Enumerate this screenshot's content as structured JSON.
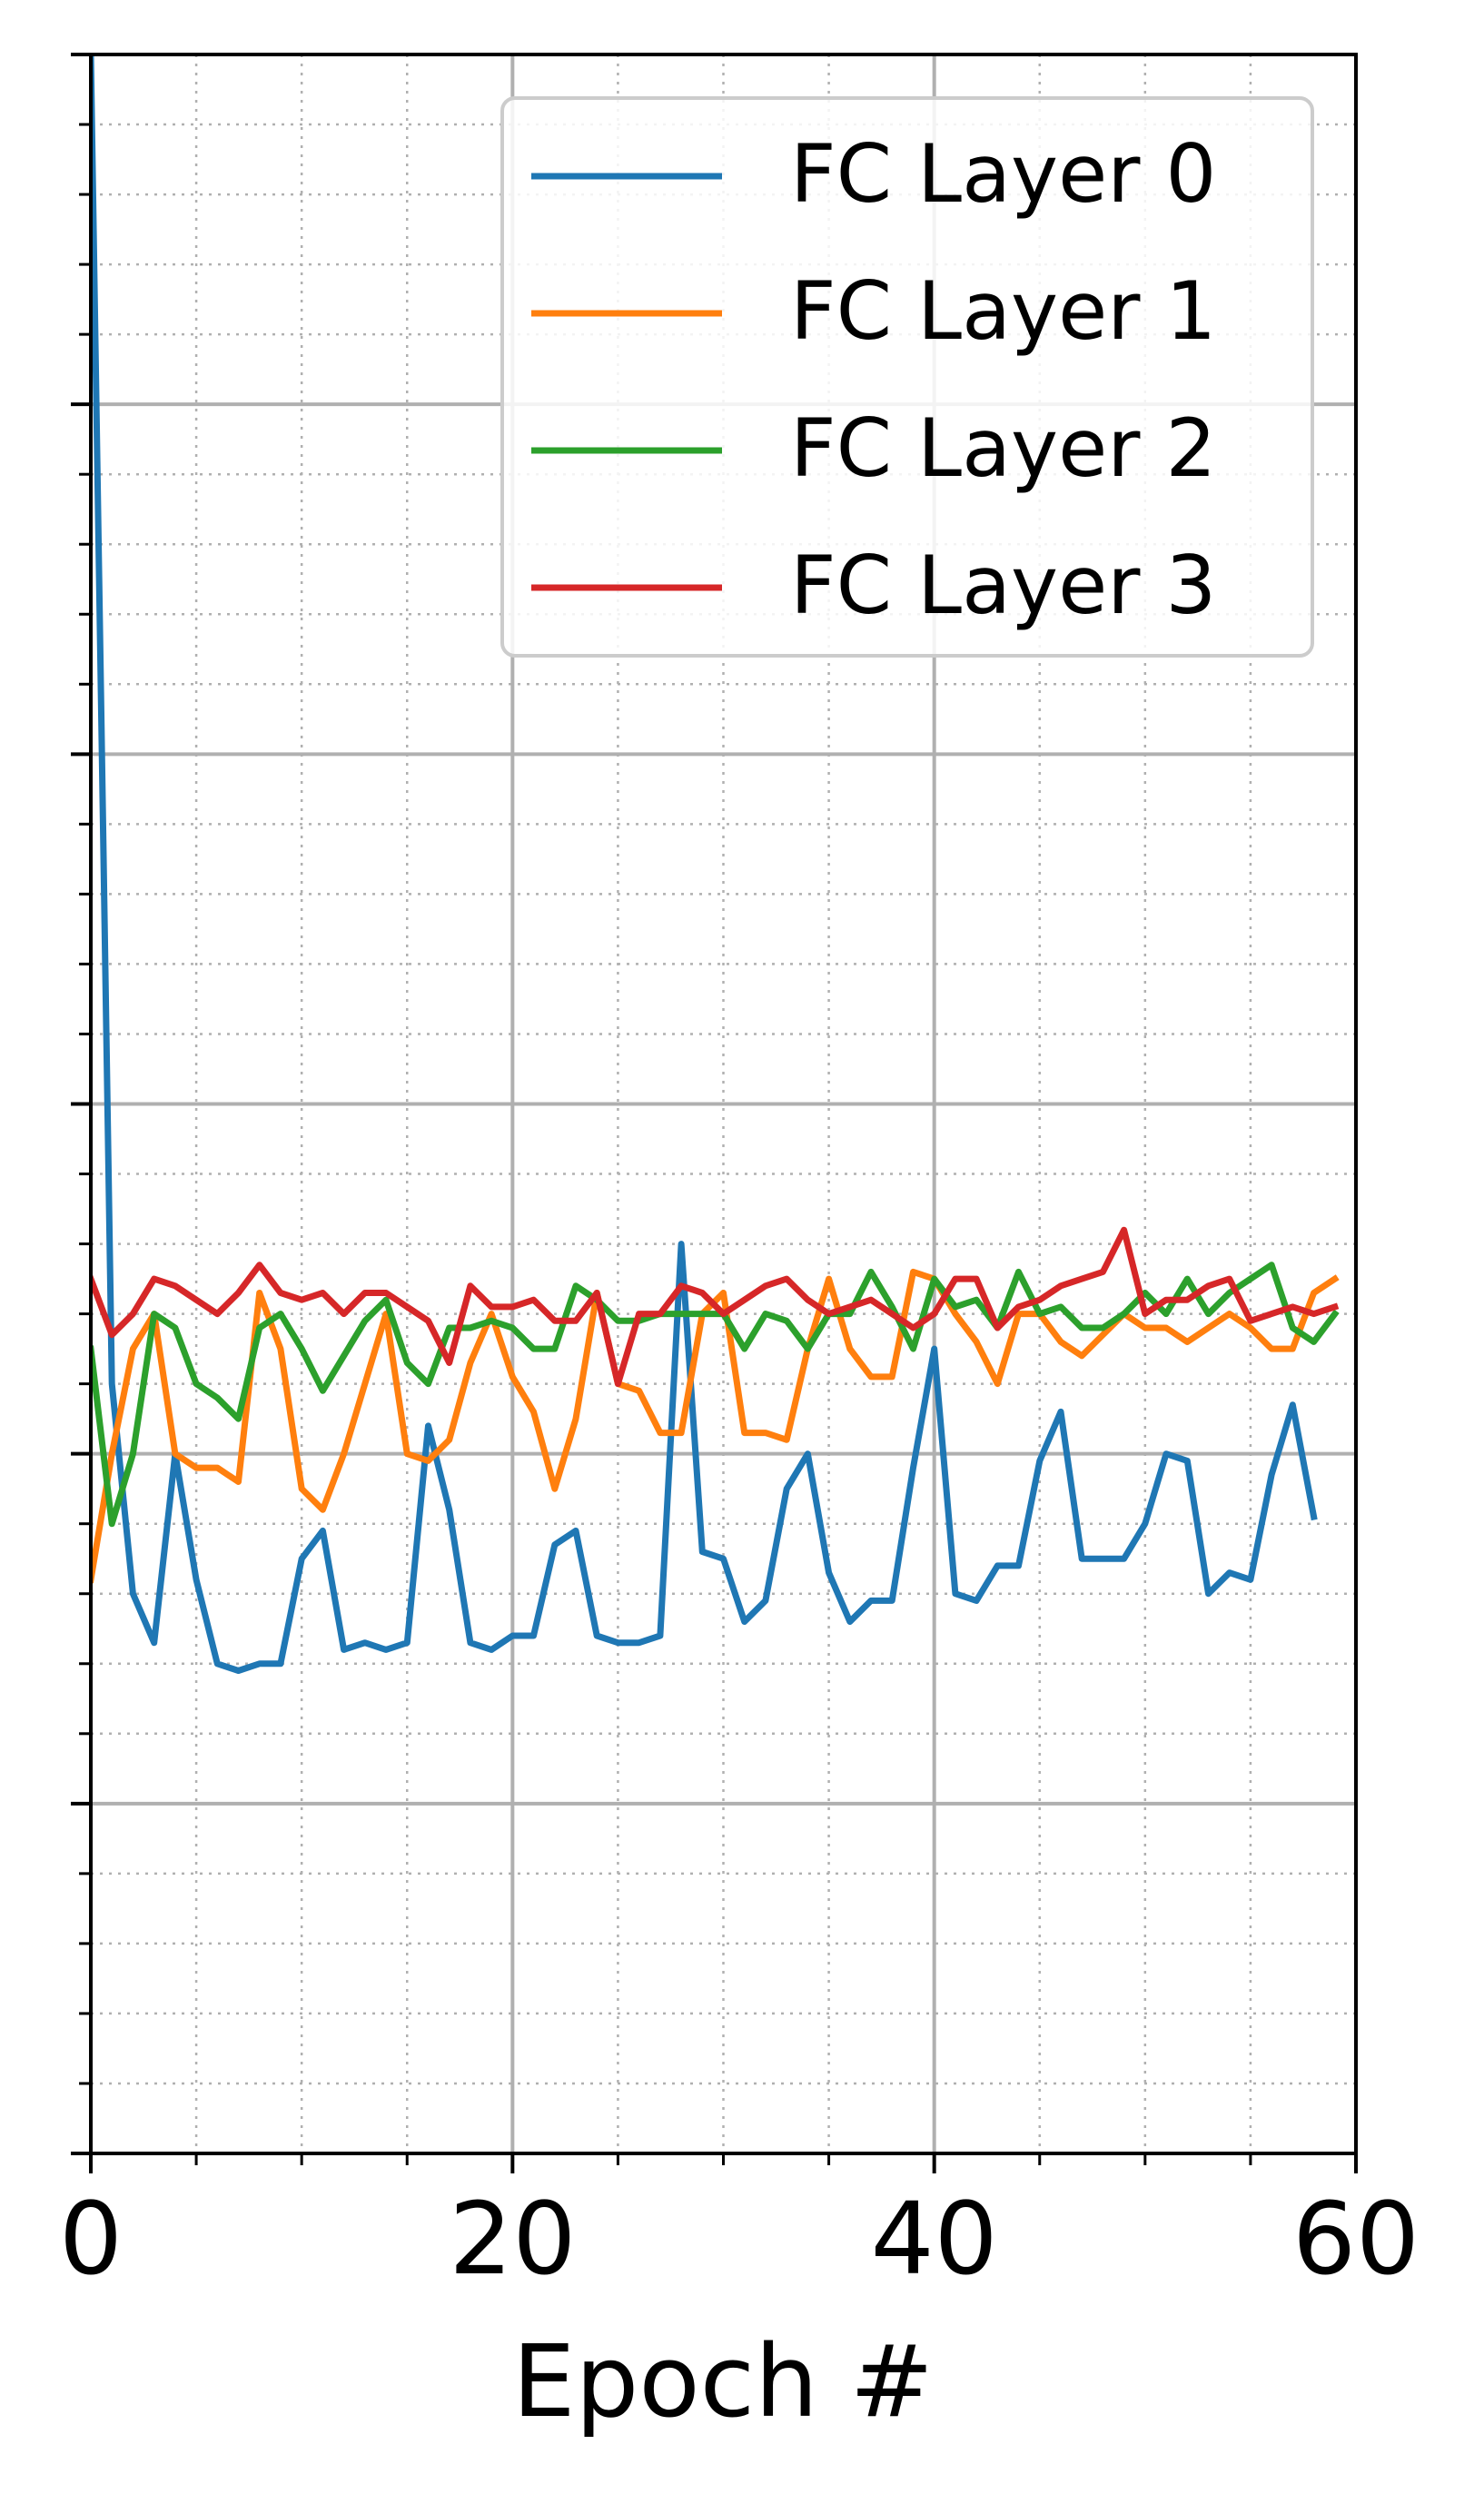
{
  "chart_data": {
    "type": "line",
    "xlabel": "Epoch #",
    "ylabel": "",
    "xlim": [
      0,
      60
    ],
    "ylim": [
      0,
      30
    ],
    "xticks": [
      0,
      20,
      40,
      60
    ],
    "grid": true,
    "legend_position": "top-right",
    "series": [
      {
        "name": "FC Layer 0",
        "color": "#1f77b4",
        "x": [
          0,
          1,
          2,
          3,
          4,
          5,
          6,
          7,
          8,
          9,
          10,
          11,
          12,
          13,
          14,
          15,
          16,
          17,
          18,
          19,
          20,
          21,
          22,
          23,
          24,
          25,
          26,
          27,
          28,
          29,
          30,
          31,
          32,
          33,
          34,
          35,
          36,
          37,
          38,
          39,
          40,
          41,
          42,
          43,
          44,
          45,
          46,
          47,
          48,
          49,
          50,
          51,
          52,
          53,
          54,
          55,
          56,
          57,
          58
        ],
        "y": [
          30.0,
          11.0,
          8.0,
          7.3,
          10.0,
          8.2,
          7.0,
          6.9,
          7.0,
          7.0,
          8.5,
          8.9,
          7.2,
          7.3,
          7.2,
          7.3,
          10.4,
          9.2,
          7.3,
          7.2,
          7.4,
          7.4,
          8.7,
          8.9,
          7.4,
          7.3,
          7.3,
          7.4,
          13.0,
          8.6,
          8.5,
          7.6,
          7.9,
          9.5,
          10.0,
          8.3,
          7.6,
          7.9,
          7.9,
          9.8,
          11.5,
          8.0,
          7.9,
          8.4,
          8.4,
          9.9,
          10.6,
          8.5,
          8.5,
          8.5,
          9.0,
          10.0,
          9.9,
          8.0,
          8.3,
          8.2,
          9.7,
          10.7,
          9.1
        ]
      },
      {
        "name": "FC Layer 1",
        "color": "#ff7f0e",
        "x": [
          0,
          1,
          2,
          3,
          4,
          5,
          6,
          7,
          8,
          9,
          10,
          11,
          12,
          13,
          14,
          15,
          16,
          17,
          18,
          19,
          20,
          21,
          22,
          23,
          24,
          25,
          26,
          27,
          28,
          29,
          30,
          31,
          32,
          33,
          34,
          35,
          36,
          37,
          38,
          39,
          40,
          41,
          42,
          43,
          44,
          45,
          46,
          47,
          48,
          49,
          50,
          51,
          52,
          53,
          54,
          55,
          56,
          57,
          58,
          59
        ],
        "y": [
          8.2,
          10.0,
          11.5,
          12.0,
          10.0,
          9.8,
          9.8,
          9.6,
          12.3,
          11.5,
          9.5,
          9.2,
          10.0,
          11.0,
          12.0,
          10.0,
          9.9,
          10.2,
          11.3,
          12.0,
          11.1,
          10.6,
          9.5,
          10.5,
          12.3,
          11.0,
          10.9,
          10.3,
          10.3,
          12.0,
          12.3,
          10.3,
          10.3,
          10.2,
          11.5,
          12.5,
          11.5,
          11.1,
          11.1,
          12.6,
          12.5,
          12.0,
          11.6,
          11.0,
          12.0,
          12.0,
          11.6,
          11.4,
          11.7,
          12.0,
          11.8,
          11.8,
          11.6,
          11.8,
          12.0,
          11.8,
          11.5,
          11.5,
          12.3,
          12.5
        ]
      },
      {
        "name": "FC Layer 2",
        "color": "#2ca02c",
        "x": [
          0,
          1,
          2,
          3,
          4,
          5,
          6,
          7,
          8,
          9,
          10,
          11,
          12,
          13,
          14,
          15,
          16,
          17,
          18,
          19,
          20,
          21,
          22,
          23,
          24,
          25,
          26,
          27,
          28,
          29,
          30,
          31,
          32,
          33,
          34,
          35,
          36,
          37,
          38,
          39,
          40,
          41,
          42,
          43,
          44,
          45,
          46,
          47,
          48,
          49,
          50,
          51,
          52,
          53,
          54,
          55,
          56,
          57,
          58,
          59
        ],
        "y": [
          11.5,
          9.0,
          10.0,
          12.0,
          11.8,
          11.0,
          10.8,
          10.5,
          11.8,
          12.0,
          11.5,
          10.9,
          11.4,
          11.9,
          12.2,
          11.3,
          11.0,
          11.8,
          11.8,
          11.9,
          11.8,
          11.5,
          11.5,
          12.4,
          12.2,
          11.9,
          11.9,
          12.0,
          12.0,
          12.0,
          12.0,
          11.5,
          12.0,
          11.9,
          11.5,
          12.0,
          12.0,
          12.6,
          12.1,
          11.5,
          12.5,
          12.1,
          12.2,
          11.8,
          12.6,
          12.0,
          12.1,
          11.8,
          11.8,
          12.0,
          12.3,
          12.0,
          12.5,
          12.0,
          12.3,
          12.5,
          12.7,
          11.8,
          11.6,
          12.0
        ]
      },
      {
        "name": "FC Layer 3",
        "color": "#d62728",
        "x": [
          0,
          1,
          2,
          3,
          4,
          5,
          6,
          7,
          8,
          9,
          10,
          11,
          12,
          13,
          14,
          15,
          16,
          17,
          18,
          19,
          20,
          21,
          22,
          23,
          24,
          25,
          26,
          27,
          28,
          29,
          30,
          31,
          32,
          33,
          34,
          35,
          36,
          37,
          38,
          39,
          40,
          41,
          42,
          43,
          44,
          45,
          46,
          47,
          48,
          49,
          50,
          51,
          52,
          53,
          54,
          55,
          56,
          57,
          58,
          59
        ],
        "y": [
          12.5,
          11.7,
          12.0,
          12.5,
          12.4,
          12.2,
          12.0,
          12.3,
          12.7,
          12.3,
          12.2,
          12.3,
          12.0,
          12.3,
          12.3,
          12.1,
          11.9,
          11.3,
          12.4,
          12.1,
          12.1,
          12.2,
          11.9,
          11.9,
          12.3,
          11.0,
          12.0,
          12.0,
          12.4,
          12.3,
          12.0,
          12.2,
          12.4,
          12.5,
          12.2,
          12.0,
          12.1,
          12.2,
          12.0,
          11.8,
          12.0,
          12.5,
          12.5,
          11.8,
          12.1,
          12.2,
          12.4,
          12.5,
          12.6,
          13.2,
          12.0,
          12.2,
          12.2,
          12.4,
          12.5,
          11.9,
          12.0,
          12.1,
          12.0,
          12.1
        ]
      }
    ]
  }
}
